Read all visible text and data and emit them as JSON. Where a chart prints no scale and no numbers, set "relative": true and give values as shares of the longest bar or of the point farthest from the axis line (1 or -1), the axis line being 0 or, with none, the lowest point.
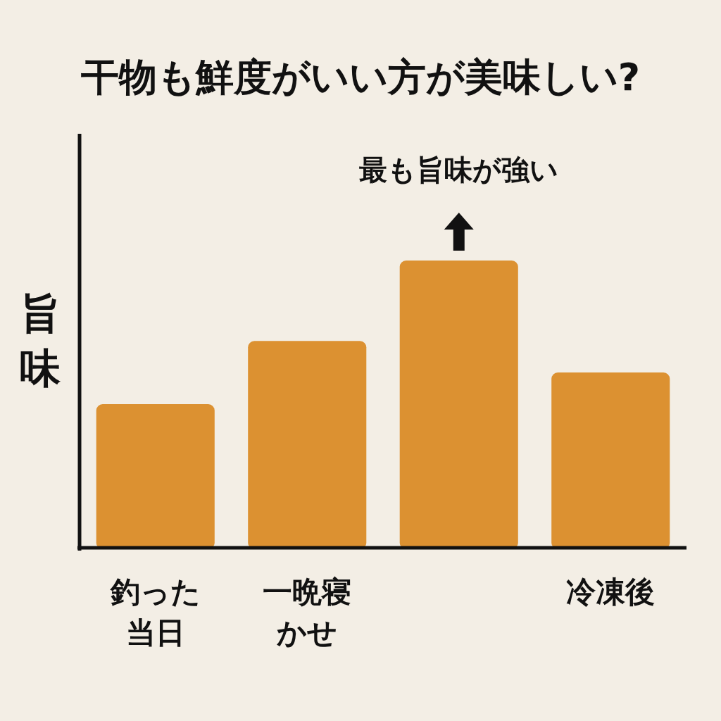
{
  "chart_data": {
    "type": "bar",
    "title": "干物も鮮度がいい方が美味しい?",
    "ylabel": "旨味",
    "categories": [
      "釣った当日",
      "一晩寝かせ",
      null,
      "冷凍後"
    ],
    "values": [
      0.5,
      0.72,
      1,
      0.61
    ],
    "color": "#dc9131",
    "relative": true,
    "annotations": [
      "最も旨味が強い"
    ]
  }
}
